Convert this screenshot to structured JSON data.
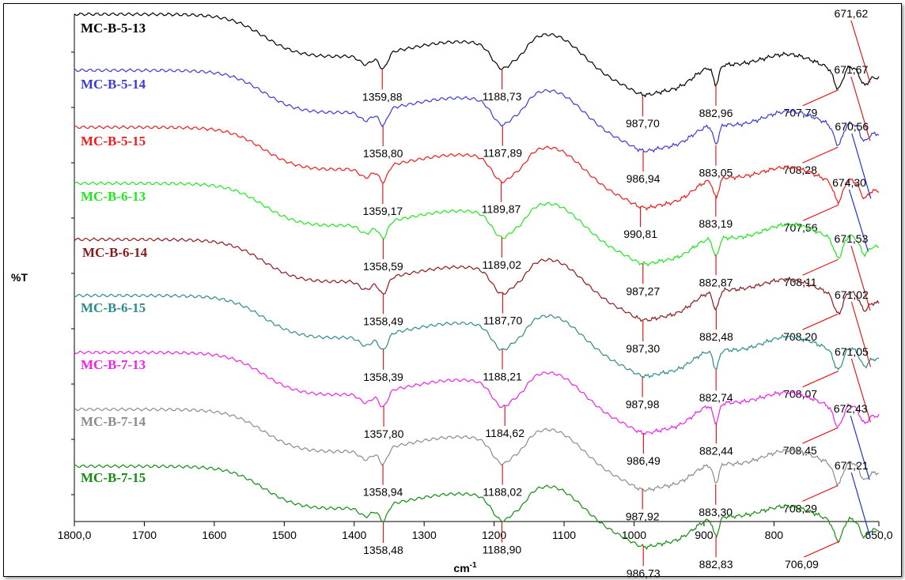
{
  "chart_data": {
    "type": "line",
    "title": "",
    "xlabel": "cm-1",
    "xlabel_base": "cm",
    "xlabel_sup": "-1",
    "ylabel": "%T",
    "xlim": [
      1800,
      650
    ],
    "x_reversed": true,
    "x_ticks": [
      "1800,0",
      "1700",
      "1600",
      "1500",
      "1400",
      "1300",
      "1200",
      "1100",
      "1000",
      "900",
      "800",
      "650,0"
    ],
    "x_tick_values": [
      1800,
      1700,
      1600,
      1500,
      1400,
      1300,
      1200,
      1100,
      1000,
      900,
      800,
      650
    ],
    "series": [
      {
        "name": "MC-B-5-13",
        "color": "#000000",
        "peaks": [
          {
            "x": 1359.88,
            "label": "1359,88"
          },
          {
            "x": 1188.73,
            "label": "1188,73"
          },
          {
            "x": 987.7,
            "label": "987,70"
          },
          {
            "x": 882.96,
            "label": "882,96"
          },
          {
            "x": 707.79,
            "label": "707,79"
          },
          {
            "x": 671.62,
            "label": "671,62"
          }
        ]
      },
      {
        "name": "MC-B-5-14",
        "color": "#3b3bd6",
        "peaks": [
          {
            "x": 1358.8,
            "label": "1358,80"
          },
          {
            "x": 1187.89,
            "label": "1187,89"
          },
          {
            "x": 986.94,
            "label": "986,94"
          },
          {
            "x": 883.05,
            "label": "883,05"
          },
          {
            "x": 708.28,
            "label": "708,28"
          },
          {
            "x": 671.67,
            "label": "671,67"
          }
        ]
      },
      {
        "name": "MC-B-5-15",
        "color": "#ee1c1c",
        "peaks": [
          {
            "x": 1359.17,
            "label": "1359,17"
          },
          {
            "x": 1189.87,
            "label": "1189,87"
          },
          {
            "x": 990.81,
            "label": "990,81"
          },
          {
            "x": 883.19,
            "label": "883,19"
          },
          {
            "x": 707.56,
            "label": "707,56"
          },
          {
            "x": 670.56,
            "label": "670,56"
          }
        ]
      },
      {
        "name": "MC-B-6-13",
        "color": "#1fe81f",
        "peaks": [
          {
            "x": 1358.59,
            "label": "1358,59"
          },
          {
            "x": 1189.02,
            "label": "1189,02"
          },
          {
            "x": 987.27,
            "label": "987,27"
          },
          {
            "x": 882.87,
            "label": "882,87"
          },
          {
            "x": 708.11,
            "label": "708,11"
          },
          {
            "x": 674.3,
            "label": "674,30"
          }
        ]
      },
      {
        "name": "MC-B-6-14",
        "color": "#8b1a1a",
        "peaks": [
          {
            "x": 1358.49,
            "label": "1358,49"
          },
          {
            "x": 1187.7,
            "label": "1187,70"
          },
          {
            "x": 987.3,
            "label": "987,30"
          },
          {
            "x": 882.48,
            "label": "882,48"
          },
          {
            "x": 708.2,
            "label": "708,20"
          },
          {
            "x": 671.53,
            "label": "671,53"
          }
        ]
      },
      {
        "name": "MC-B-6-15",
        "color": "#2e8b8b",
        "peaks": [
          {
            "x": 1358.39,
            "label": "1358,39"
          },
          {
            "x": 1188.21,
            "label": "1188,21"
          },
          {
            "x": 987.98,
            "label": "987,98"
          },
          {
            "x": 882.74,
            "label": "882,74"
          },
          {
            "x": 708.07,
            "label": "708,07"
          },
          {
            "x": 671.02,
            "label": "671,02"
          }
        ]
      },
      {
        "name": "MC-B-7-13",
        "color": "#ee22ee",
        "peaks": [
          {
            "x": 1357.8,
            "label": "1357,80"
          },
          {
            "x": 1184.62,
            "label": "1184,62"
          },
          {
            "x": 986.49,
            "label": "986,49"
          },
          {
            "x": 882.44,
            "label": "882,44"
          },
          {
            "x": 708.45,
            "label": "708,45"
          },
          {
            "x": 671.05,
            "label": "671,05"
          }
        ]
      },
      {
        "name": "MC-B-7-14",
        "color": "#8c8c8c",
        "peaks": [
          {
            "x": 1358.94,
            "label": "1358,94"
          },
          {
            "x": 1188.02,
            "label": "1188,02"
          },
          {
            "x": 987.92,
            "label": "987,92"
          },
          {
            "x": 883.3,
            "label": "883,30"
          },
          {
            "x": 708.29,
            "label": "708,29"
          },
          {
            "x": 672.43,
            "label": "672,43"
          }
        ]
      },
      {
        "name": "MC-B-7-15",
        "color": "#148c14",
        "peaks": [
          {
            "x": 1358.48,
            "label": "1358,48"
          },
          {
            "x": 1188.9,
            "label": "1188,90"
          },
          {
            "x": 986.73,
            "label": "986,73"
          },
          {
            "x": 882.83,
            "label": "882,83"
          },
          {
            "x": 706.09,
            "label": "706,09"
          },
          {
            "x": 671.21,
            "label": "671,21"
          }
        ]
      }
    ]
  }
}
